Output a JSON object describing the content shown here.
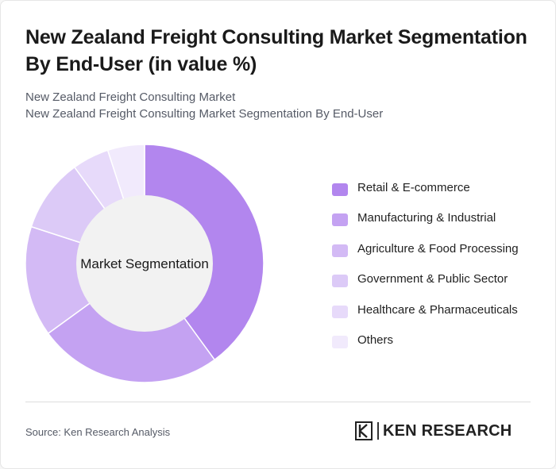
{
  "header": {
    "title": "New Zealand Freight Consulting Market Segmentation By End-User (in value %)",
    "subtitle_1": "New Zealand Freight Consulting Market",
    "subtitle_2": "New Zealand Freight Consulting Market Segmentation By End-User"
  },
  "chart_data": {
    "type": "pie",
    "variant": "donut",
    "center_label": "Market Segmentation",
    "legend_position": "right",
    "categories": [
      "Retail & E-commerce",
      "Manufacturing & Industrial",
      "Agriculture & Food Processing",
      "Government & Public Sector",
      "Healthcare & Pharmaceuticals",
      "Others"
    ],
    "values": [
      40,
      25,
      15,
      10,
      5,
      5
    ],
    "colors": [
      "#b286ee",
      "#c4a2f2",
      "#d3baf5",
      "#dccaf7",
      "#e7dafa",
      "#f1eafc"
    ]
  },
  "footer": {
    "source": "Source: Ken Research Analysis",
    "logo_text": "KEN RESEARCH"
  }
}
